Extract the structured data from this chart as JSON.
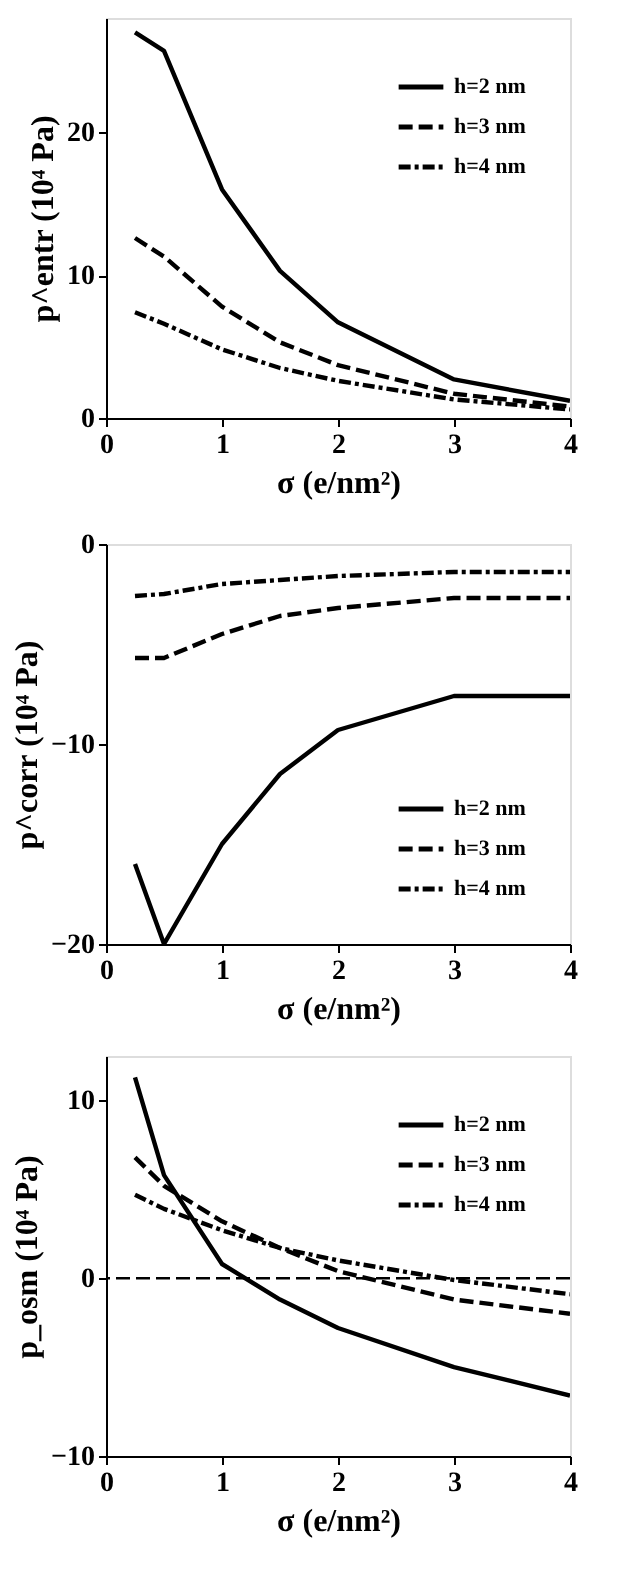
{
  "chart_data": [
    {
      "type": "line",
      "xlabel": "σ (e/nm²)",
      "ylabel": "p^entr (10⁴ Pa)",
      "xlim": [
        0,
        4
      ],
      "xticks": [
        0,
        1,
        2,
        3,
        4
      ],
      "ylim": [
        0,
        28
      ],
      "yticks": [
        0,
        10,
        20
      ],
      "grid": false,
      "legend": "top right",
      "marker": "none",
      "x": [
        0.25,
        0.5,
        1,
        1.5,
        2,
        3,
        4
      ],
      "series": [
        {
          "name": "h=2 nm",
          "color": "#000000",
          "line_style": "solid",
          "values": [
            27.0,
            25.7,
            16.0,
            10.3,
            6.7,
            2.7,
            1.2
          ]
        },
        {
          "name": "h=3 nm",
          "color": "#000000",
          "line_style": "dashed",
          "values": [
            12.6,
            11.3,
            7.8,
            5.3,
            3.7,
            1.7,
            0.8
          ]
        },
        {
          "name": "h=4 nm",
          "color": "#000000",
          "line_style": "dotted",
          "values": [
            7.4,
            6.6,
            4.8,
            3.5,
            2.6,
            1.3,
            0.6
          ]
        }
      ]
    },
    {
      "type": "line",
      "xlabel": "σ (e/nm²)",
      "ylabel": "p^corr (10⁴ Pa)",
      "xlim": [
        0,
        4
      ],
      "xticks": [
        0,
        1,
        2,
        3,
        4
      ],
      "ylim": [
        -20,
        0
      ],
      "yticks": [
        -20,
        -10,
        0
      ],
      "grid": false,
      "legend": "bottom right",
      "marker": "none",
      "x": [
        0.25,
        0.5,
        1,
        1.5,
        2,
        3,
        4
      ],
      "series": [
        {
          "name": "h=2 nm",
          "color": "#000000",
          "line_style": "solid",
          "values": [
            -16.0,
            -20.0,
            -15.0,
            -11.5,
            -9.3,
            -7.6,
            -7.6
          ]
        },
        {
          "name": "h=3 nm",
          "color": "#000000",
          "line_style": "dashed",
          "values": [
            -5.7,
            -5.7,
            -4.5,
            -3.6,
            -3.2,
            -2.7,
            -2.7
          ]
        },
        {
          "name": "h=4 nm",
          "color": "#000000",
          "line_style": "dotted",
          "values": [
            -2.6,
            -2.5,
            -2.0,
            -1.8,
            -1.6,
            -1.4,
            -1.4
          ]
        }
      ]
    },
    {
      "type": "line",
      "xlabel": "σ (e/nm²)",
      "ylabel": "p_osm (10⁴ Pa)",
      "xlim": [
        0,
        4
      ],
      "xticks": [
        0,
        1,
        2,
        3,
        4
      ],
      "ylim": [
        -10,
        12.5
      ],
      "yticks": [
        -10,
        0,
        10
      ],
      "grid": false,
      "legend": "top right",
      "marker": "none",
      "x": [
        0.25,
        0.5,
        1,
        1.5,
        2,
        3,
        4
      ],
      "series": [
        {
          "name": "h=2 nm",
          "color": "#000000",
          "line_style": "solid",
          "values": [
            11.3,
            5.8,
            0.8,
            -1.2,
            -2.8,
            -5.0,
            -6.6
          ]
        },
        {
          "name": "h=3 nm",
          "color": "#000000",
          "line_style": "dashed",
          "values": [
            6.8,
            5.2,
            3.2,
            1.7,
            0.4,
            -1.2,
            -2.0
          ]
        },
        {
          "name": "h=4 nm",
          "color": "#000000",
          "line_style": "dotted",
          "values": [
            4.7,
            3.9,
            2.7,
            1.7,
            1.0,
            -0.1,
            -0.9
          ]
        }
      ],
      "ref_lines": [
        {
          "axis": "y",
          "value": 0,
          "color": "#000000",
          "line_style": "dashed"
        }
      ]
    }
  ]
}
